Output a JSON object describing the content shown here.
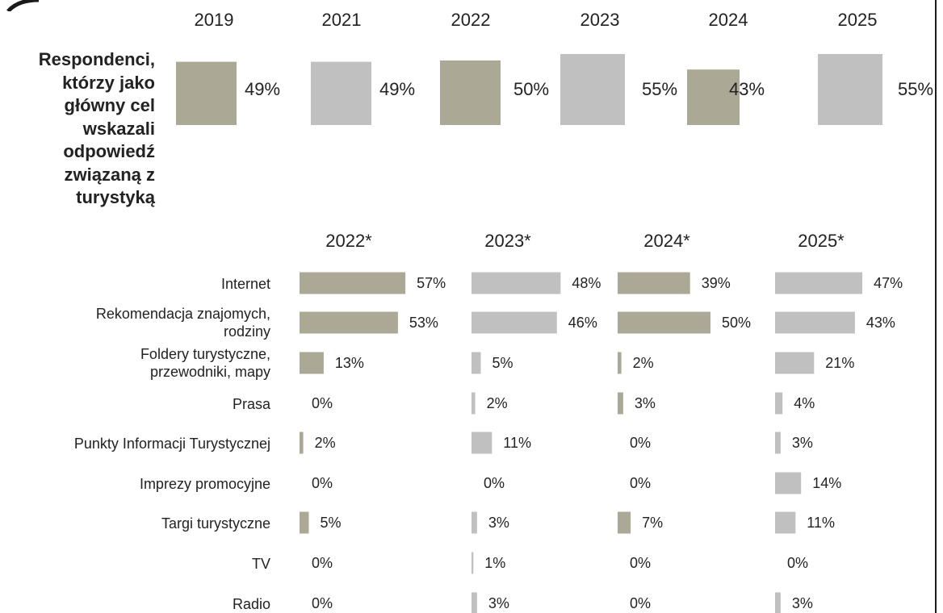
{
  "colors": {
    "olive": "#aba995",
    "gray": "#c0c0c0",
    "text": "#222222"
  },
  "row_title": "Respondenci, którzy jako główny cel wskazali odpowiedź związaną z turystyką",
  "chart_data": [
    {
      "type": "bar",
      "title": "",
      "row_label": "Respondenci, którzy jako główny cel wskazali odpowiedź związaną z turystyką",
      "categories": [
        "2019",
        "2021",
        "2022",
        "2023",
        "2024",
        "2025"
      ],
      "values": [
        49,
        49,
        50,
        55,
        43,
        55
      ],
      "value_labels": [
        "49%",
        "49%",
        "50%",
        "55%",
        "43%",
        "55%"
      ],
      "bar_colors": [
        "olive",
        "gray",
        "olive",
        "gray",
        "olive",
        "gray"
      ],
      "unit": "%"
    },
    {
      "type": "bar",
      "orientation": "horizontal",
      "title": "",
      "categories": [
        "Internet",
        "Rekomendacja znajomych, rodziny",
        "Foldery turystyczne, przewodniki, mapy",
        "Prasa",
        "Punkty Informacji Turystycznej",
        "Imprezy promocyjne",
        "Targi turystyczne",
        "TV",
        "Radio"
      ],
      "category_lines": [
        [
          "Internet"
        ],
        [
          "Rekomendacja znajomych,",
          "rodziny"
        ],
        [
          "Foldery turystyczne,",
          "przewodniki, mapy"
        ],
        [
          "Prasa"
        ],
        [
          "Punkty Informacji Turystycznej"
        ],
        [
          "Imprezy promocyjne"
        ],
        [
          "Targi turystyczne"
        ],
        [
          "TV"
        ],
        [
          "Radio"
        ]
      ],
      "series": [
        {
          "name": "2022*",
          "color": "olive",
          "values": [
            57,
            53,
            13,
            0,
            2,
            0,
            5,
            0,
            0
          ],
          "labels": [
            "57%",
            "53%",
            "13%",
            "0%",
            "2%",
            "0%",
            "5%",
            "0%",
            "0%"
          ]
        },
        {
          "name": "2023*",
          "color": "gray",
          "values": [
            48,
            46,
            5,
            2,
            11,
            0,
            3,
            1,
            3
          ],
          "labels": [
            "48%",
            "46%",
            "5%",
            "2%",
            "11%",
            "0%",
            "3%",
            "1%",
            "3%"
          ]
        },
        {
          "name": "2024*",
          "color": "olive",
          "values": [
            39,
            50,
            2,
            3,
            0,
            0,
            7,
            0,
            0
          ],
          "labels": [
            "39%",
            "50%",
            "2%",
            "3%",
            "0%",
            "0%",
            "7%",
            "0%",
            "0%"
          ]
        },
        {
          "name": "2025*",
          "color": "gray",
          "values": [
            47,
            43,
            21,
            4,
            3,
            14,
            11,
            0,
            3
          ],
          "labels": [
            "47%",
            "43%",
            "21%",
            "4%",
            "3%",
            "14%",
            "11%",
            "0%",
            "3%"
          ]
        }
      ],
      "unit": "%"
    }
  ]
}
